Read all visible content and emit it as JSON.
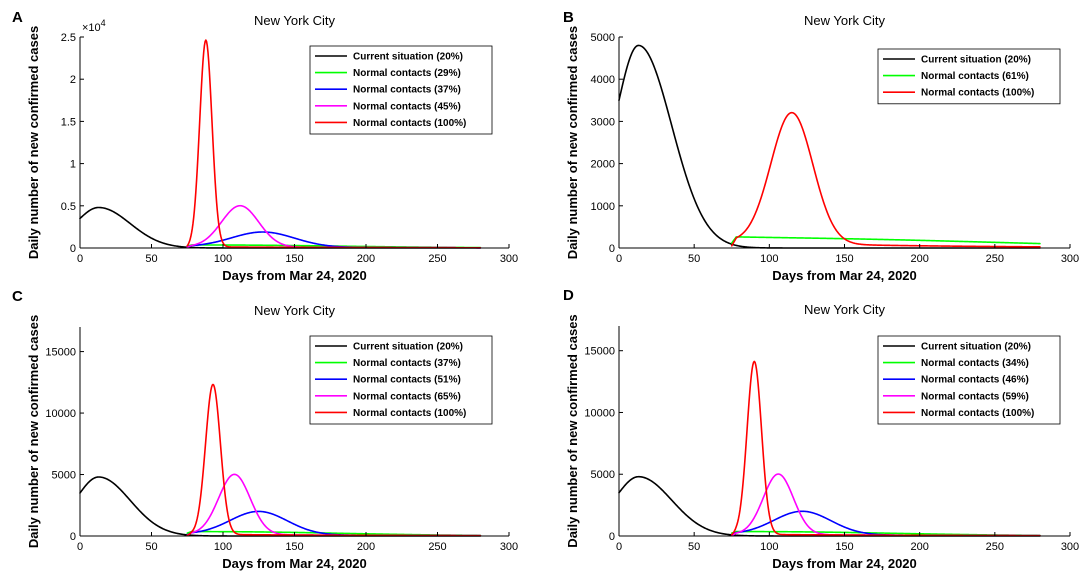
{
  "chart_data": [
    {
      "panel": "A",
      "type": "line",
      "title": "New York City",
      "xlabel": "Days from Mar 24, 2020",
      "ylabel": "Daily number of new confirmed cases",
      "xlim": [
        0,
        300
      ],
      "ylim": [
        0,
        25000
      ],
      "xticks": [
        0,
        50,
        100,
        150,
        200,
        250,
        300
      ],
      "yticks": [
        0,
        5000,
        10000,
        15000,
        20000,
        25000
      ],
      "ytick_labels": [
        "0",
        "0.5",
        "1",
        "1.5",
        "2",
        "2.5"
      ],
      "y_exponent": "4",
      "series": [
        {
          "name": "Current situation (20%)",
          "color": "#000000",
          "start": 0,
          "end": 280,
          "curve": {
            "base": 3500,
            "mu": 13,
            "sigma": 22,
            "a": 4800
          },
          "peak": 4800
        },
        {
          "name": "Normal contacts (29%)",
          "color": "#00ff00",
          "start": 75,
          "end": 280,
          "curve": {
            "base": 130,
            "mu": 110,
            "sigma": 80,
            "a": 250
          },
          "peak": 260
        },
        {
          "name": "Normal contacts (37%)",
          "color": "#0000ff",
          "start": 75,
          "end": 280,
          "curve": {
            "base": 150,
            "mu": 128,
            "sigma": 22,
            "a": 1800
          },
          "peak": 1800
        },
        {
          "name": "Normal contacts (45%)",
          "color": "#ff00ff",
          "start": 75,
          "end": 280,
          "curve": {
            "base": 150,
            "mu": 112,
            "sigma": 13,
            "a": 4900
          },
          "peak": 4900
        },
        {
          "name": "Normal contacts (100%)",
          "color": "#ff0000",
          "start": 75,
          "end": 280,
          "curve": {
            "base": 150,
            "mu": 88,
            "sigma": 4.3,
            "a": 24500
          },
          "peak": 24500
        }
      ]
    },
    {
      "panel": "B",
      "type": "line",
      "title": "New York City",
      "xlabel": "Days from Mar 24, 2020",
      "ylabel": "Daily number of new confirmed cases",
      "xlim": [
        0,
        300
      ],
      "ylim": [
        0,
        5000
      ],
      "xticks": [
        0,
        50,
        100,
        150,
        200,
        250,
        300
      ],
      "yticks": [
        0,
        1000,
        2000,
        3000,
        4000,
        5000
      ],
      "ytick_labels": [
        "0",
        "1000",
        "2000",
        "3000",
        "4000",
        "5000"
      ],
      "y_exponent": "",
      "series": [
        {
          "name": "Current situation (20%)",
          "color": "#000000",
          "start": 0,
          "end": 280,
          "curve": {
            "base": 3500,
            "mu": 13,
            "sigma": 22,
            "a": 4800
          },
          "peak": 4800
        },
        {
          "name": "Normal contacts (61%)",
          "color": "#00ff00",
          "start": 75,
          "end": 280,
          "curve": {
            "base": 150,
            "mu": 150,
            "sigma": 120,
            "a": 140
          },
          "peak": 140
        },
        {
          "name": "Normal contacts (100%)",
          "color": "#ff0000",
          "start": 75,
          "end": 280,
          "curve": {
            "base": 150,
            "mu": 115,
            "sigma": 14,
            "a": 3100
          },
          "peak": 3100
        }
      ]
    },
    {
      "panel": "C",
      "type": "line",
      "title": "New York City",
      "xlabel": "Days from Mar 24, 2020",
      "ylabel": "Daily number of new confirmed cases",
      "xlim": [
        0,
        300
      ],
      "ylim": [
        0,
        17000
      ],
      "xticks": [
        0,
        50,
        100,
        150,
        200,
        250,
        300
      ],
      "yticks": [
        0,
        5000,
        10000,
        15000
      ],
      "ytick_labels": [
        "0",
        "5000",
        "10000",
        "15000"
      ],
      "y_exponent": "",
      "series": [
        {
          "name": "Current situation (20%)",
          "color": "#000000",
          "start": 0,
          "end": 280,
          "curve": {
            "base": 3500,
            "mu": 13,
            "sigma": 22,
            "a": 4800
          },
          "peak": 4800
        },
        {
          "name": "Normal contacts (37%)",
          "color": "#00ff00",
          "start": 75,
          "end": 280,
          "curve": {
            "base": 130,
            "mu": 110,
            "sigma": 80,
            "a": 250
          },
          "peak": 260
        },
        {
          "name": "Normal contacts (51%)",
          "color": "#0000ff",
          "start": 75,
          "end": 280,
          "curve": {
            "base": 150,
            "mu": 125,
            "sigma": 20,
            "a": 1900
          },
          "peak": 1900
        },
        {
          "name": "Normal contacts (65%)",
          "color": "#ff00ff",
          "start": 75,
          "end": 280,
          "curve": {
            "base": 150,
            "mu": 108,
            "sigma": 11,
            "a": 4900
          },
          "peak": 4900
        },
        {
          "name": "Normal contacts (100%)",
          "color": "#ff0000",
          "start": 75,
          "end": 280,
          "curve": {
            "base": 150,
            "mu": 93,
            "sigma": 5.2,
            "a": 12200
          },
          "peak": 12200
        }
      ]
    },
    {
      "panel": "D",
      "type": "line",
      "title": "New York City",
      "xlabel": "Days from Mar 24, 2020",
      "ylabel": "Daily number of new confirmed cases",
      "xlim": [
        0,
        300
      ],
      "ylim": [
        0,
        17000
      ],
      "xticks": [
        0,
        50,
        100,
        150,
        200,
        250,
        300
      ],
      "yticks": [
        0,
        5000,
        10000,
        15000
      ],
      "ytick_labels": [
        "0",
        "5000",
        "10000",
        "15000"
      ],
      "y_exponent": "",
      "series": [
        {
          "name": "Current situation (20%)",
          "color": "#000000",
          "start": 0,
          "end": 280,
          "curve": {
            "base": 3500,
            "mu": 13,
            "sigma": 22,
            "a": 4800
          },
          "peak": 4800
        },
        {
          "name": "Normal contacts (34%)",
          "color": "#00ff00",
          "start": 75,
          "end": 280,
          "curve": {
            "base": 130,
            "mu": 110,
            "sigma": 80,
            "a": 250
          },
          "peak": 260
        },
        {
          "name": "Normal contacts (46%)",
          "color": "#0000ff",
          "start": 75,
          "end": 280,
          "curve": {
            "base": 150,
            "mu": 122,
            "sigma": 19,
            "a": 1900
          },
          "peak": 1900
        },
        {
          "name": "Normal contacts (59%)",
          "color": "#ff00ff",
          "start": 75,
          "end": 280,
          "curve": {
            "base": 150,
            "mu": 106,
            "sigma": 10,
            "a": 4900
          },
          "peak": 4900
        },
        {
          "name": "Normal contacts (100%)",
          "color": "#ff0000",
          "start": 75,
          "end": 280,
          "curve": {
            "base": 150,
            "mu": 90,
            "sigma": 4.8,
            "a": 14000
          },
          "peak": 14000
        }
      ]
    }
  ]
}
